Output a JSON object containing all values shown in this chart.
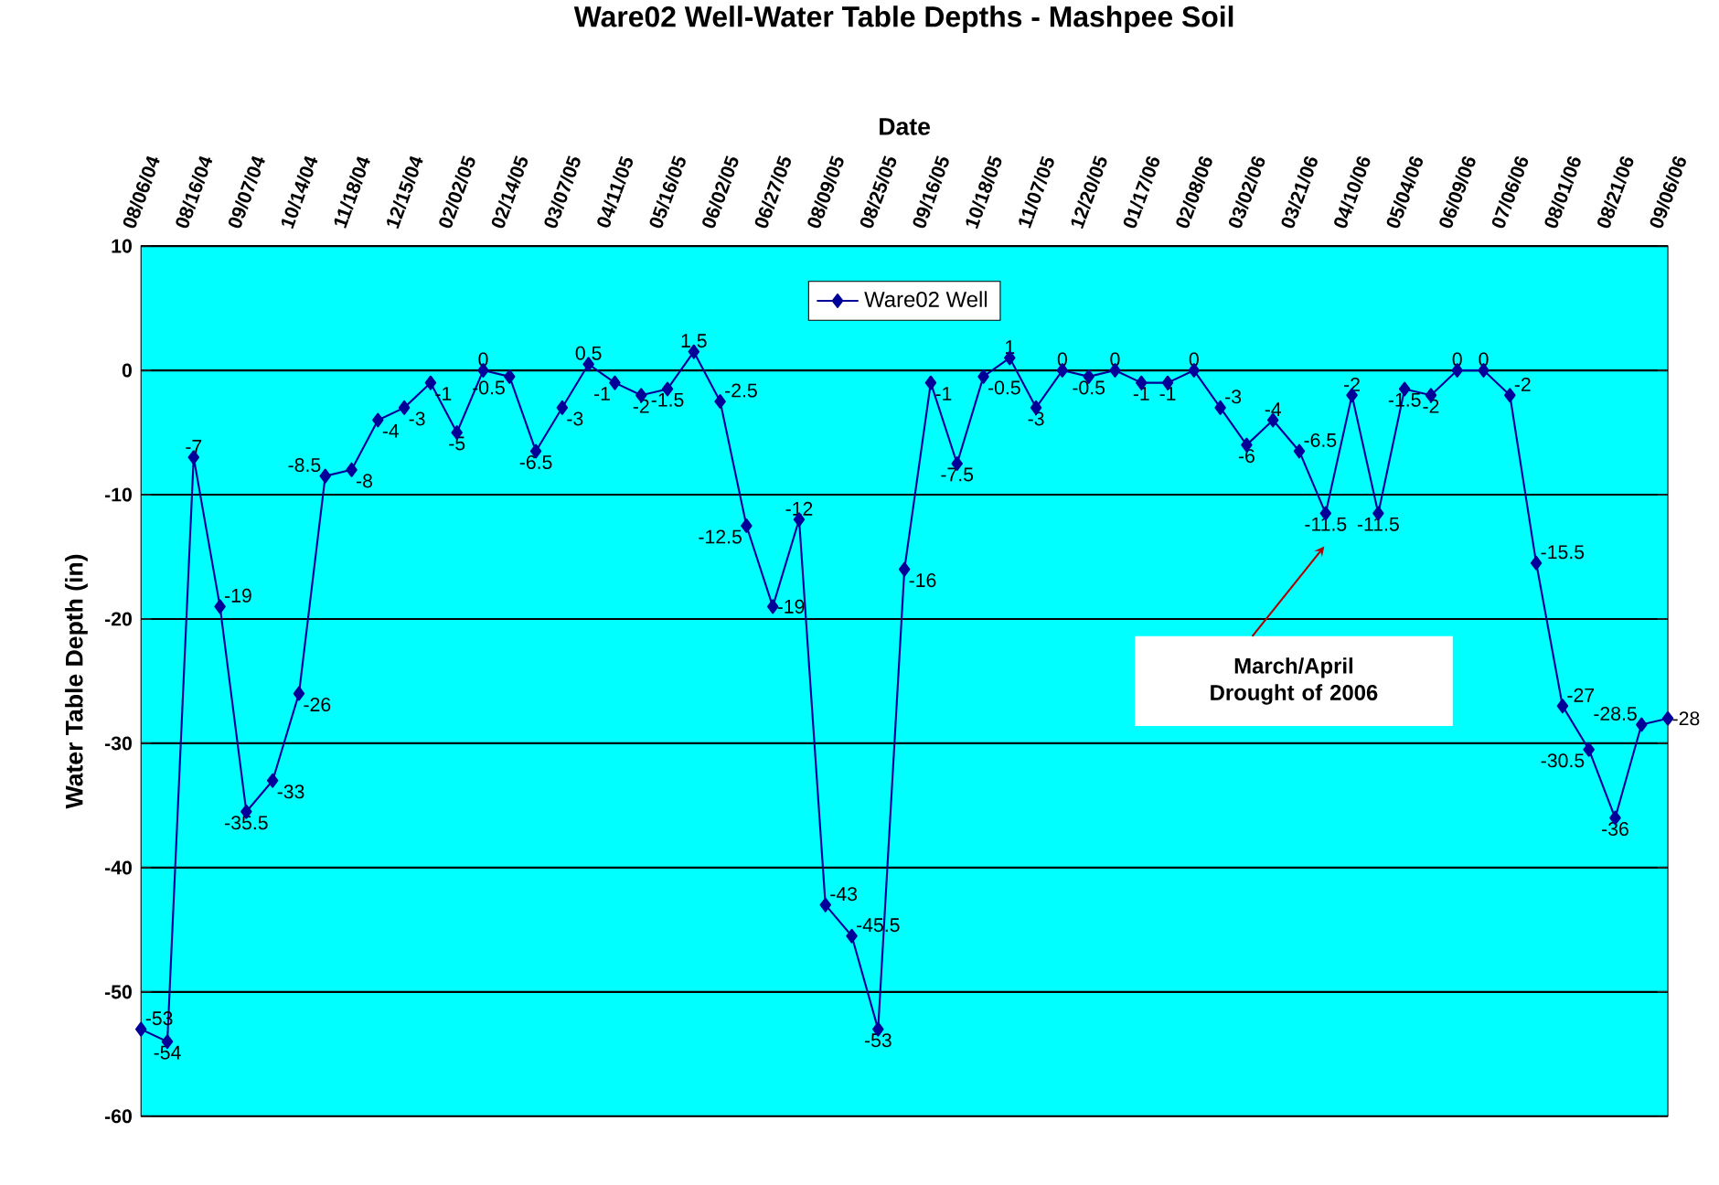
{
  "chart_data": {
    "type": "line",
    "title": "Ware02 Well-Water Table Depths - Mashpee Soil",
    "xlabel": "Date",
    "ylabel": "Water Table Depth (in)",
    "categories": [
      "08/06/04",
      null,
      "08/16/04",
      null,
      "09/07/04",
      null,
      "10/14/04",
      null,
      "11/18/04",
      null,
      "12/15/04",
      null,
      "02/02/05",
      null,
      "02/14/05",
      null,
      "03/07/05",
      null,
      "04/11/05",
      null,
      "05/16/05",
      null,
      "06/02/05",
      null,
      "06/27/05",
      null,
      "08/09/05",
      null,
      "08/25/05",
      null,
      "09/16/05",
      null,
      "10/18/05",
      null,
      "11/07/05",
      null,
      "12/20/05",
      null,
      "01/17/06",
      null,
      "02/08/06",
      null,
      "03/02/06",
      null,
      "03/21/06",
      null,
      "04/10/06",
      null,
      "05/04/06",
      null,
      "06/09/06",
      null,
      "07/06/06",
      null,
      "08/01/06",
      null,
      "08/21/06",
      null,
      "09/06/06"
    ],
    "series": [
      {
        "name": "Ware02 Well",
        "color": "#000099",
        "values": [
          -53,
          -54,
          -7,
          -19,
          -35.5,
          -33,
          -26,
          -8.5,
          -8,
          -4,
          -3,
          -1,
          -5,
          0,
          -0.5,
          -6.5,
          -3,
          0.5,
          -1,
          -2,
          -1.5,
          1.5,
          -2.5,
          -12.5,
          -19,
          -12,
          -43,
          -45.5,
          -53,
          -16,
          -1,
          -7.5,
          -0.5,
          1,
          -3,
          0,
          -0.5,
          0,
          -1,
          -1,
          0,
          -3,
          -6,
          -4,
          -6.5,
          -11.5,
          -2,
          -11.5,
          -1.5,
          -2,
          0,
          0,
          -2,
          -15.5,
          -27,
          -30.5,
          -36,
          -28.5,
          -28
        ]
      }
    ],
    "ylim": [
      -60,
      10
    ],
    "yticks": [
      -60,
      -50,
      -40,
      -30,
      -20,
      -10,
      0,
      10
    ],
    "grid": "y",
    "legend": "top",
    "marker": "diamond",
    "data_labels": true,
    "annotations": [
      "March/April Drought of 2006"
    ]
  }
}
